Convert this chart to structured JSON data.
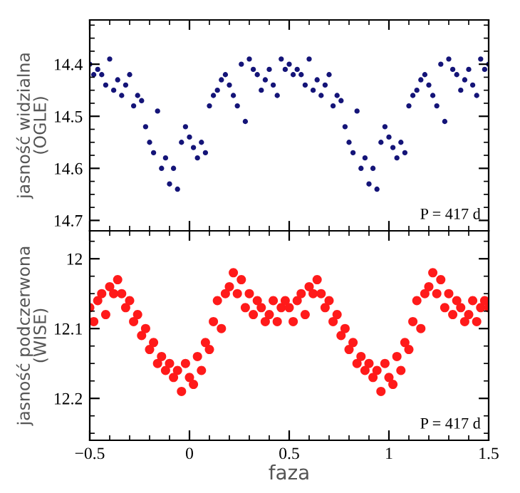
{
  "chart_data": [
    {
      "type": "scatter",
      "ylabel": "jasność widzialna\n(OGLE)",
      "xlim": [
        -0.5,
        1.5
      ],
      "xticks": [
        -0.5,
        0,
        0.5,
        1,
        1.5
      ],
      "ylim": [
        14.72,
        14.315
      ],
      "yticks": [
        14.4,
        14.5,
        14.6,
        14.7
      ],
      "tick_labels": "y",
      "grid": false,
      "legend": false,
      "marker": "circle",
      "annotations": [
        "P = 417 d"
      ],
      "series": [
        {
          "color": "#141478",
          "x": [
            -0.5,
            -0.48,
            -0.46,
            -0.44,
            -0.42,
            -0.4,
            -0.38,
            -0.36,
            -0.34,
            -0.32,
            -0.3,
            -0.28,
            -0.26,
            -0.24,
            -0.22,
            -0.2,
            -0.18,
            -0.16,
            -0.14,
            -0.12,
            -0.1,
            -0.08,
            -0.06,
            -0.04,
            -0.02,
            0.0,
            0.02,
            0.04,
            0.06,
            0.08,
            0.1,
            0.12,
            0.14,
            0.16,
            0.18,
            0.2,
            0.22,
            0.24,
            0.26,
            0.28,
            0.3,
            0.32,
            0.34,
            0.36,
            0.38,
            0.4,
            0.42,
            0.44,
            0.46,
            0.48,
            0.5,
            0.52,
            0.54,
            0.56,
            0.58,
            0.6,
            0.62,
            0.64,
            0.66,
            0.68,
            0.7,
            0.72,
            0.74,
            0.76,
            0.78,
            0.8,
            0.82,
            0.84,
            0.86,
            0.88,
            0.9,
            0.92,
            0.94,
            0.96,
            0.98,
            1.0,
            1.02,
            1.04,
            1.06,
            1.08,
            1.1,
            1.12,
            1.14,
            1.16,
            1.18,
            1.2,
            1.22,
            1.24,
            1.26,
            1.28,
            1.3,
            1.32,
            1.34,
            1.36,
            1.38,
            1.4,
            1.42,
            1.44,
            1.46,
            1.48,
            1.5
          ],
          "values": [
            14.4,
            14.42,
            14.41,
            14.42,
            14.44,
            14.39,
            14.45,
            14.43,
            14.46,
            14.44,
            14.42,
            14.48,
            14.46,
            14.47,
            14.52,
            14.55,
            14.57,
            14.49,
            14.6,
            14.58,
            14.63,
            14.6,
            14.64,
            14.55,
            14.52,
            14.54,
            14.56,
            14.58,
            14.55,
            14.57,
            14.48,
            14.46,
            14.45,
            14.43,
            14.42,
            14.44,
            14.46,
            14.48,
            14.4,
            14.51,
            14.39,
            14.41,
            14.42,
            14.45,
            14.43,
            14.41,
            14.44,
            14.46,
            14.39,
            14.41,
            14.4,
            14.42,
            14.41,
            14.42,
            14.44,
            14.39,
            14.45,
            14.43,
            14.46,
            14.44,
            14.42,
            14.48,
            14.46,
            14.47,
            14.52,
            14.55,
            14.57,
            14.49,
            14.6,
            14.58,
            14.63,
            14.6,
            14.64,
            14.55,
            14.52,
            14.54,
            14.56,
            14.58,
            14.55,
            14.57,
            14.48,
            14.46,
            14.45,
            14.43,
            14.42,
            14.44,
            14.46,
            14.48,
            14.4,
            14.51,
            14.39,
            14.41,
            14.42,
            14.45,
            14.43,
            14.41,
            14.44,
            14.46,
            14.39,
            14.41,
            14.4
          ]
        }
      ]
    },
    {
      "type": "scatter",
      "ylabel": "jasność podczerwona\n(WISE)",
      "xlabel": "faza",
      "xlim": [
        -0.5,
        1.5
      ],
      "xticks": [
        {
          "value": -0.5,
          "label": "−0.5"
        },
        0,
        0.5,
        1,
        1.5
      ],
      "ylim": [
        12.26,
        11.96
      ],
      "yticks": [
        12,
        12.1,
        12.2
      ],
      "grid": false,
      "legend": false,
      "marker": "circle",
      "annotations": [
        "P = 417 d"
      ],
      "series": [
        {
          "color": "#ff1a1a",
          "x": [
            -0.5,
            -0.48,
            -0.46,
            -0.44,
            -0.42,
            -0.4,
            -0.38,
            -0.36,
            -0.34,
            -0.32,
            -0.3,
            -0.28,
            -0.26,
            -0.24,
            -0.22,
            -0.2,
            -0.18,
            -0.16,
            -0.14,
            -0.12,
            -0.1,
            -0.08,
            -0.06,
            -0.04,
            -0.02,
            0.0,
            0.02,
            0.04,
            0.06,
            0.08,
            0.1,
            0.12,
            0.14,
            0.16,
            0.18,
            0.2,
            0.22,
            0.24,
            0.26,
            0.28,
            0.3,
            0.32,
            0.34,
            0.36,
            0.38,
            0.4,
            0.42,
            0.44,
            0.46,
            0.48,
            0.5,
            0.52,
            0.54,
            0.56,
            0.58,
            0.6,
            0.62,
            0.64,
            0.66,
            0.68,
            0.7,
            0.72,
            0.74,
            0.76,
            0.78,
            0.8,
            0.82,
            0.84,
            0.86,
            0.88,
            0.9,
            0.92,
            0.94,
            0.96,
            0.98,
            1.0,
            1.02,
            1.04,
            1.06,
            1.08,
            1.1,
            1.12,
            1.14,
            1.16,
            1.18,
            1.2,
            1.22,
            1.24,
            1.26,
            1.28,
            1.3,
            1.32,
            1.34,
            1.36,
            1.38,
            1.4,
            1.42,
            1.44,
            1.46,
            1.48,
            1.5
          ],
          "values": [
            12.07,
            12.09,
            12.06,
            12.05,
            12.08,
            12.04,
            12.05,
            12.03,
            12.05,
            12.07,
            12.06,
            12.09,
            12.08,
            12.11,
            12.1,
            12.13,
            12.12,
            12.15,
            12.14,
            12.16,
            12.15,
            12.17,
            12.16,
            12.19,
            12.15,
            12.17,
            12.18,
            12.14,
            12.16,
            12.12,
            12.13,
            12.09,
            12.06,
            12.1,
            12.05,
            12.04,
            12.02,
            12.05,
            12.03,
            12.07,
            12.05,
            12.08,
            12.06,
            12.07,
            12.09,
            12.08,
            12.06,
            12.09,
            12.07,
            12.06,
            12.07,
            12.09,
            12.06,
            12.05,
            12.08,
            12.04,
            12.05,
            12.03,
            12.05,
            12.07,
            12.06,
            12.09,
            12.08,
            12.11,
            12.1,
            12.13,
            12.12,
            12.15,
            12.14,
            12.16,
            12.15,
            12.17,
            12.16,
            12.19,
            12.15,
            12.17,
            12.18,
            12.14,
            12.16,
            12.12,
            12.13,
            12.09,
            12.06,
            12.1,
            12.05,
            12.04,
            12.02,
            12.05,
            12.03,
            12.07,
            12.05,
            12.08,
            12.06,
            12.07,
            12.09,
            12.08,
            12.06,
            12.09,
            12.07,
            12.06,
            12.07
          ]
        }
      ]
    }
  ]
}
